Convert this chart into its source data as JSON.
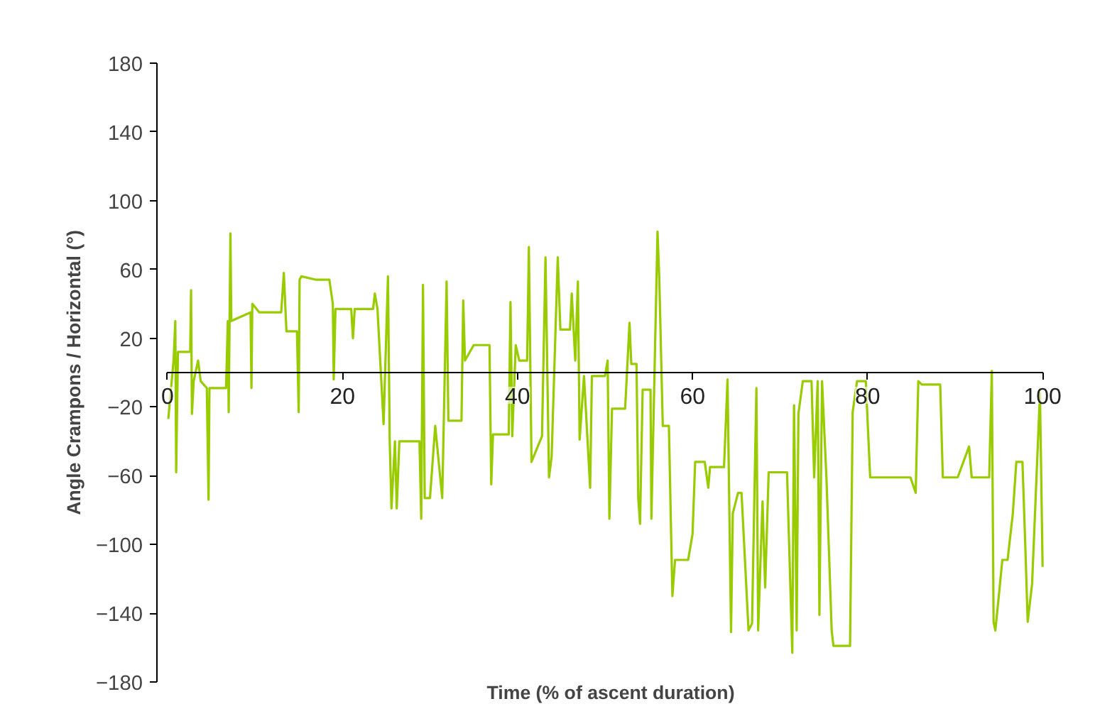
{
  "chart_data": {
    "type": "line",
    "xlabel": "Time (% of ascent duration)",
    "ylabel": "Angle Crampons / Horizontal (°)",
    "xlim": [
      0,
      100
    ],
    "ylim": [
      -180,
      180
    ],
    "xticks": [
      0,
      20,
      40,
      60,
      80,
      100
    ],
    "yticks": [
      -180,
      -140,
      -100,
      -60,
      -20,
      20,
      60,
      100,
      140,
      180
    ],
    "grid": false,
    "x": [
      0.1,
      0.7,
      0.9,
      1.0,
      1.2,
      2.6,
      2.7,
      2.8,
      3.0,
      3.5,
      3.8,
      4.5,
      4.7,
      4.8,
      6.7,
      6.9,
      7.0,
      7.2,
      7.3,
      9.5,
      9.6,
      9.7,
      10.5,
      13.0,
      13.3,
      13.6,
      14.8,
      15.0,
      15.1,
      15.3,
      17.0,
      18.5,
      18.9,
      19.0,
      19.2,
      21.0,
      21.2,
      21.4,
      23.5,
      23.7,
      24.0,
      24.7,
      25.2,
      25.4,
      25.6,
      26.0,
      26.2,
      26.5,
      28.8,
      29.0,
      29.2,
      29.4,
      30.0,
      30.6,
      31.4,
      31.9,
      32.1,
      33.6,
      33.8,
      34.0,
      35.0,
      36.8,
      37.0,
      37.2,
      39.0,
      39.2,
      39.4,
      39.8,
      40.2,
      41.1,
      41.3,
      41.6,
      42.8,
      43.2,
      43.6,
      43.9,
      44.6,
      44.9,
      46.0,
      46.2,
      46.6,
      46.9,
      47.1,
      47.6,
      48.3,
      48.5,
      50.0,
      50.3,
      50.5,
      50.8,
      52.3,
      52.8,
      53.0,
      53.6,
      53.8,
      54.0,
      54.3,
      55.2,
      55.3,
      56.0,
      56.2,
      56.6,
      57.3,
      57.7,
      58.0,
      59.5,
      60.0,
      60.3,
      61.4,
      61.8,
      62.0,
      63.6,
      64.0,
      64.4,
      64.6,
      65.2,
      65.6,
      66.4,
      66.8,
      67.3,
      67.5,
      68.0,
      68.3,
      68.7,
      70.8,
      71.4,
      71.6,
      71.9,
      72.1,
      72.6,
      73.6,
      73.9,
      74.3,
      74.5,
      74.8,
      75.3,
      75.9,
      76.1,
      78.0,
      78.3,
      78.8,
      79.8,
      80.3,
      84.9,
      85.5,
      85.8,
      86.2,
      88.3,
      88.6,
      90.3,
      91.6,
      91.9,
      93.9,
      94.2,
      94.4,
      94.6,
      95.0,
      95.4,
      96.0,
      96.6,
      97.0,
      97.7,
      98.0,
      98.3,
      98.8,
      99.7,
      100.0
    ],
    "series": [
      {
        "color": "#99cc00",
        "values": [
          -27,
          7,
          30,
          -58,
          12,
          12,
          48,
          -24,
          -5,
          7,
          -5,
          -9,
          -74,
          -9,
          -9,
          30,
          -23,
          81,
          30,
          35,
          -9,
          40,
          35,
          35,
          58,
          24,
          24,
          -23,
          54,
          56,
          54,
          54,
          40,
          -4,
          37,
          37,
          20,
          37,
          37,
          46,
          37,
          -30,
          56,
          -40,
          -79,
          -40,
          -79,
          -40,
          -40,
          -85,
          51,
          -73,
          -73,
          -31,
          -73,
          53,
          -28,
          -28,
          42,
          7,
          16,
          16,
          -65,
          -36,
          -36,
          41,
          -37,
          16,
          7,
          7,
          73,
          -52,
          -37,
          67,
          -61,
          -49,
          67,
          25,
          25,
          46,
          7,
          53,
          -39,
          -2,
          -67,
          -2,
          -2,
          7,
          -85,
          -21,
          -21,
          29,
          5,
          5,
          -73,
          -88,
          -10,
          -10,
          -85,
          82,
          55,
          -31,
          -31,
          -130,
          -109,
          -109,
          -94,
          -52,
          -52,
          -67,
          -55,
          -55,
          -4,
          -151,
          -82,
          -70,
          -70,
          -150,
          -146,
          -9,
          -150,
          -75,
          -125,
          -58,
          -58,
          -163,
          -19,
          -150,
          -24,
          -5,
          -5,
          -61,
          -5,
          -141,
          -5,
          -61,
          -150,
          -159,
          -159,
          -23,
          -5,
          -5,
          -61,
          -61,
          -70,
          -5,
          -7,
          -7,
          -61,
          -61,
          -43,
          -61,
          -61,
          1,
          -145,
          -150,
          -130,
          -109,
          -109,
          -82,
          -52,
          -52,
          -97,
          -145,
          -123,
          -12,
          -113
        ]
      }
    ]
  }
}
